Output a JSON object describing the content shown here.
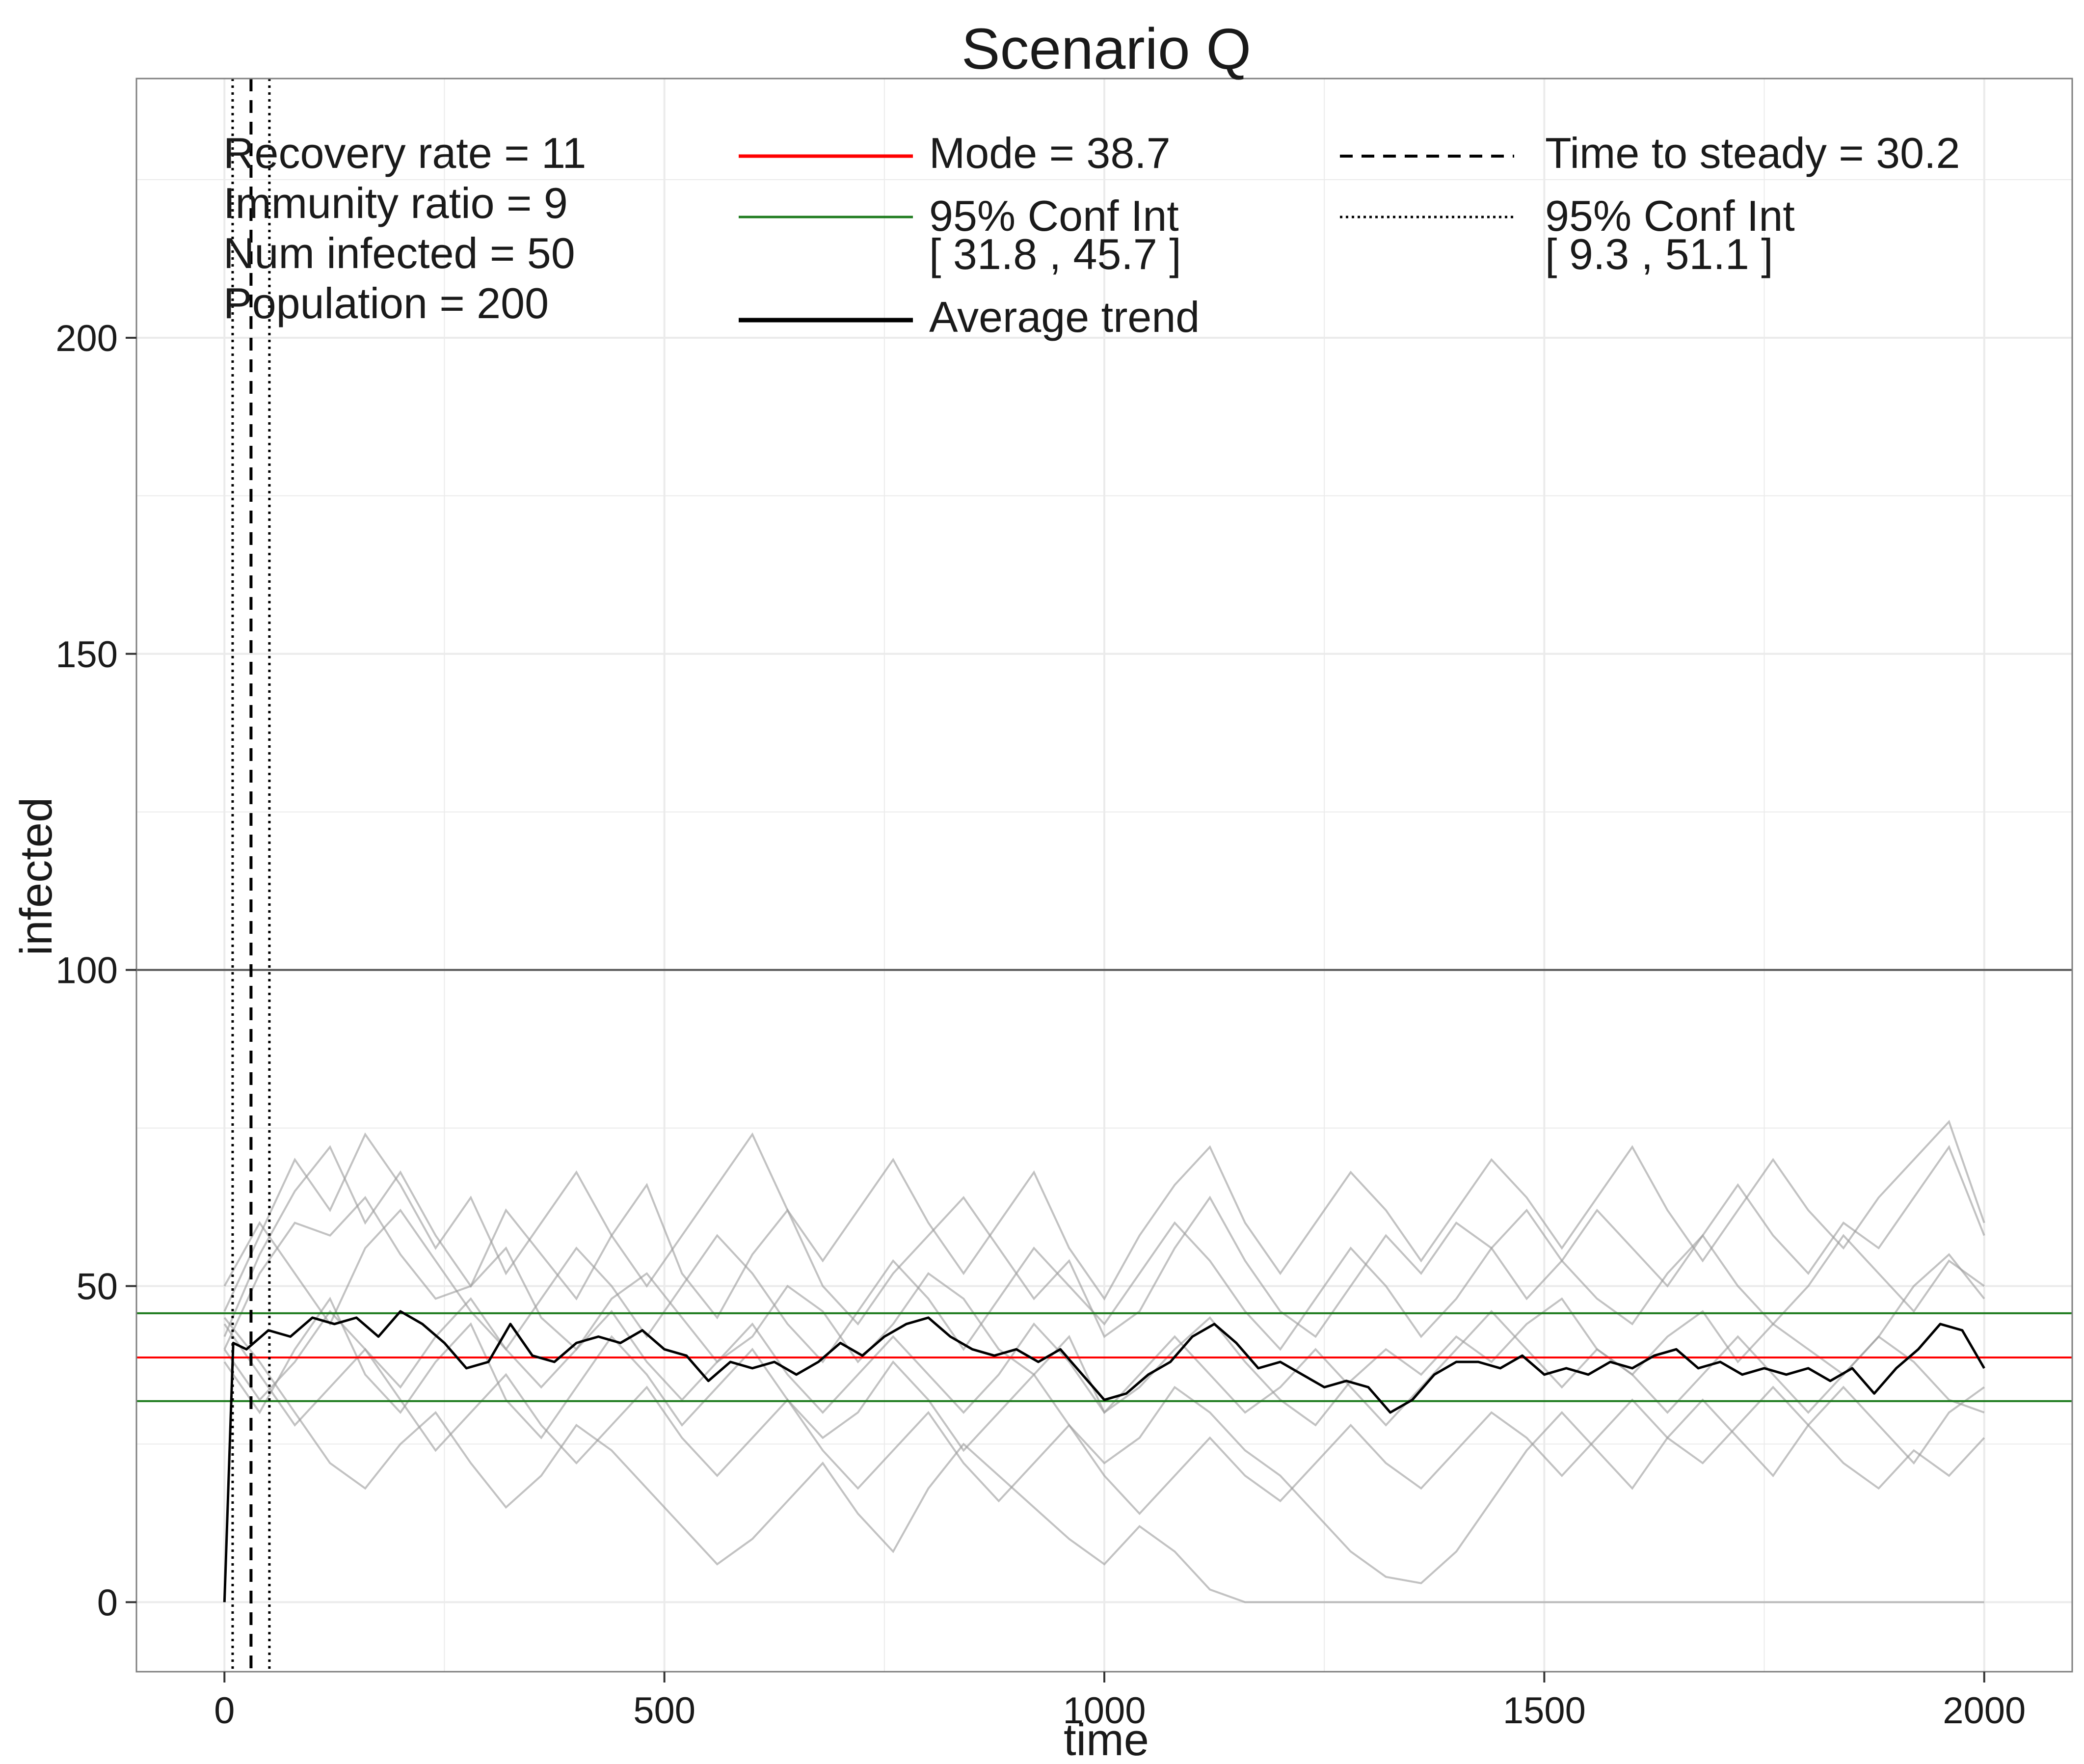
{
  "chart_data": {
    "type": "line",
    "title": "Scenario Q",
    "xlabel": "time",
    "ylabel": "infected",
    "xlim": [
      -100,
      2100
    ],
    "ylim": [
      -11,
      241
    ],
    "xticks": [
      0,
      500,
      1000,
      1500,
      2000
    ],
    "xtick_labels": [
      "0",
      "500",
      "1000",
      "1500",
      "2000"
    ],
    "yticks": [
      0,
      50,
      100,
      150,
      200
    ],
    "ytick_labels": [
      "0",
      "50",
      "100",
      "150",
      "200"
    ],
    "grid": true,
    "population_line": 100,
    "mode": 38.7,
    "conf_int": [
      31.8,
      45.7
    ],
    "time_to_steady": 30.2,
    "steady_conf_int": [
      9.3,
      51.1
    ],
    "params": [
      "Recovery rate = 11",
      "Immunity ratio = 9",
      "Num infected = 50",
      "Population = 200"
    ],
    "legend": {
      "mode_label": "Mode = 38.7",
      "ci_label_1": "95% Conf Int",
      "ci_label_2": "[ 31.8 , 45.7 ]",
      "trend_label": "Average trend",
      "steady_label": "Time to steady = 30.2",
      "steady_ci_label_1": "95% Conf Int",
      "steady_ci_label_2": "[ 9.3 , 51.1 ]"
    },
    "colors": {
      "mode": "#ff0000",
      "conf_int": "#1e7b1e",
      "trend": "#000000",
      "runs": "#9a9a9a",
      "population": "#555555",
      "grid": "#ebebeb",
      "panel_border": "#7f7f7f"
    },
    "average_trend": {
      "x": [
        0,
        10,
        25,
        50,
        75,
        100,
        125,
        150,
        175,
        200,
        225,
        250,
        275,
        300,
        325,
        350,
        375,
        400,
        425,
        450,
        475,
        500,
        525,
        550,
        575,
        600,
        625,
        650,
        675,
        700,
        725,
        750,
        775,
        800,
        825,
        850,
        875,
        900,
        925,
        950,
        975,
        1000,
        1025,
        1050,
        1075,
        1100,
        1125,
        1150,
        1175,
        1200,
        1225,
        1250,
        1275,
        1300,
        1325,
        1350,
        1375,
        1400,
        1425,
        1450,
        1475,
        1500,
        1525,
        1550,
        1575,
        1600,
        1625,
        1650,
        1675,
        1700,
        1725,
        1750,
        1775,
        1800,
        1825,
        1850,
        1875,
        1900,
        1925,
        1950,
        1975,
        2000
      ],
      "y": [
        0,
        41,
        40,
        43,
        42,
        45,
        44,
        45,
        42,
        46,
        44,
        41,
        37,
        38,
        44,
        39,
        38,
        41,
        42,
        41,
        43,
        40,
        39,
        35,
        38,
        37,
        38,
        36,
        38,
        41,
        39,
        42,
        44,
        45,
        42,
        40,
        39,
        40,
        38,
        40,
        36,
        32,
        33,
        36,
        38,
        42,
        44,
        41,
        37,
        38,
        36,
        34,
        35,
        34,
        30,
        32,
        36,
        38,
        38,
        37,
        39,
        36,
        37,
        36,
        38,
        37,
        39,
        40,
        37,
        38,
        36,
        37,
        36,
        37,
        35,
        37,
        33,
        37,
        40,
        44,
        43,
        37
      ]
    },
    "runs": [
      {
        "x": [
          0,
          40,
          80,
          120,
          160,
          200,
          240,
          280,
          320,
          360,
          400,
          440,
          480,
          520,
          560,
          600,
          640,
          680,
          720,
          760,
          800,
          840,
          880,
          920,
          960,
          1000,
          1040,
          1080,
          1120,
          1160,
          1200,
          1240,
          1280,
          1320,
          1360,
          1400,
          1440,
          1480,
          1520,
          1560,
          1600,
          1640,
          1680,
          1720,
          1760,
          1800,
          1840,
          1880,
          1920,
          1960,
          2000
        ],
        "y": [
          40,
          52,
          60,
          58,
          64,
          55,
          48,
          50,
          56,
          45,
          40,
          48,
          52,
          45,
          38,
          42,
          50,
          46,
          38,
          44,
          52,
          48,
          40,
          36,
          42,
          30,
          34,
          40,
          45,
          38,
          32,
          28,
          35,
          40,
          36,
          42,
          38,
          44,
          48,
          40,
          36,
          42,
          46,
          38,
          44,
          40,
          36,
          42,
          50,
          55,
          48
        ]
      },
      {
        "x": [
          0,
          40,
          80,
          120,
          160,
          200,
          240,
          280,
          320,
          360,
          400,
          440,
          480,
          520,
          560,
          600,
          640,
          680,
          720,
          760,
          800,
          840,
          880,
          920,
          960,
          1000,
          1040,
          1080,
          1120,
          1160,
          1200,
          1240,
          1280,
          1320,
          1360,
          1400,
          1440,
          1480,
          1520,
          1560,
          1600,
          1640,
          1680,
          1720,
          1760,
          1800,
          1840,
          1880,
          1920,
          1960,
          2000
        ],
        "y": [
          45,
          38,
          30,
          22,
          18,
          25,
          30,
          22,
          15,
          20,
          28,
          24,
          18,
          12,
          6,
          10,
          16,
          22,
          14,
          8,
          18,
          25,
          20,
          15,
          10,
          6,
          12,
          8,
          2,
          0,
          0,
          0,
          0,
          0,
          0,
          0,
          0,
          0,
          0,
          0,
          0,
          0,
          0,
          0,
          0,
          0,
          0,
          0,
          0,
          0,
          0
        ]
      },
      {
        "x": [
          0,
          40,
          80,
          120,
          160,
          200,
          240,
          280,
          320,
          360,
          400,
          440,
          480,
          520,
          560,
          600,
          640,
          680,
          720,
          760,
          800,
          840,
          880,
          920,
          960,
          1000,
          1040,
          1080,
          1120,
          1160,
          1200,
          1240,
          1280,
          1320,
          1360,
          1400,
          1440,
          1480,
          1520,
          1560,
          1600,
          1640,
          1680,
          1720,
          1760,
          1800,
          1840,
          1880,
          1920,
          1960,
          2000
        ],
        "y": [
          42,
          55,
          65,
          72,
          60,
          68,
          58,
          50,
          62,
          55,
          48,
          58,
          66,
          52,
          45,
          55,
          62,
          50,
          44,
          52,
          58,
          64,
          56,
          48,
          54,
          42,
          46,
          56,
          64,
          54,
          46,
          42,
          50,
          58,
          52,
          60,
          56,
          48,
          54,
          62,
          56,
          50,
          58,
          66,
          58,
          52,
          60,
          56,
          64,
          72,
          58
        ]
      },
      {
        "x": [
          0,
          40,
          80,
          120,
          160,
          200,
          240,
          280,
          320,
          360,
          400,
          440,
          480,
          520,
          560,
          600,
          640,
          680,
          720,
          760,
          800,
          840,
          880,
          920,
          960,
          1000,
          1040,
          1080,
          1120,
          1160,
          1200,
          1240,
          1280,
          1320,
          1360,
          1400,
          1440,
          1480,
          1520,
          1560,
          1600,
          1640,
          1680,
          1720,
          1760,
          1800,
          1840,
          1880,
          1920,
          1960,
          2000
        ],
        "y": [
          38,
          30,
          40,
          48,
          36,
          30,
          38,
          44,
          32,
          26,
          34,
          42,
          36,
          28,
          34,
          40,
          32,
          26,
          30,
          38,
          32,
          24,
          30,
          36,
          28,
          22,
          26,
          34,
          30,
          24,
          20,
          14,
          8,
          4,
          3,
          8,
          16,
          24,
          30,
          24,
          18,
          26,
          32,
          26,
          20,
          28,
          34,
          28,
          22,
          30,
          34
        ]
      },
      {
        "x": [
          0,
          40,
          80,
          120,
          160,
          200,
          240,
          280,
          320,
          360,
          400,
          440,
          480,
          520,
          560,
          600,
          640,
          680,
          720,
          760,
          800,
          840,
          880,
          920,
          960,
          1000,
          1040,
          1080,
          1120,
          1160,
          1200,
          1240,
          1280,
          1320,
          1360,
          1400,
          1440,
          1480,
          1520,
          1560,
          1600,
          1640,
          1680,
          1720,
          1760,
          1800,
          1840,
          1880,
          1920,
          1960,
          2000
        ],
        "y": [
          50,
          60,
          52,
          44,
          56,
          62,
          54,
          46,
          40,
          48,
          56,
          50,
          42,
          50,
          58,
          52,
          44,
          38,
          46,
          54,
          48,
          40,
          48,
          56,
          50,
          44,
          52,
          60,
          54,
          46,
          40,
          48,
          56,
          50,
          42,
          48,
          56,
          62,
          54,
          48,
          44,
          52,
          58,
          50,
          44,
          50,
          58,
          52,
          46,
          54,
          50
        ]
      },
      {
        "x": [
          0,
          40,
          80,
          120,
          160,
          200,
          240,
          280,
          320,
          360,
          400,
          440,
          480,
          520,
          560,
          600,
          640,
          680,
          720,
          760,
          800,
          840,
          880,
          920,
          960,
          1000,
          1040,
          1080,
          1120,
          1160,
          1200,
          1240,
          1280,
          1320,
          1360,
          1400,
          1440,
          1480,
          1520,
          1560,
          1600,
          1640,
          1680,
          1720,
          1760,
          1800,
          1840,
          1880,
          1920,
          1960,
          2000
        ],
        "y": [
          44,
          36,
          28,
          34,
          40,
          32,
          24,
          30,
          36,
          28,
          22,
          28,
          34,
          26,
          20,
          26,
          32,
          24,
          18,
          24,
          30,
          22,
          16,
          22,
          28,
          20,
          14,
          20,
          26,
          20,
          16,
          22,
          28,
          22,
          18,
          24,
          30,
          26,
          20,
          26,
          32,
          26,
          22,
          28,
          34,
          28,
          22,
          18,
          24,
          20,
          26
        ]
      },
      {
        "x": [
          0,
          40,
          80,
          120,
          160,
          200,
          240,
          280,
          320,
          360,
          400,
          440,
          480,
          520,
          560,
          600,
          640,
          680,
          720,
          760,
          800,
          840,
          880,
          920,
          960,
          1000,
          1040,
          1080,
          1120,
          1160,
          1200,
          1240,
          1280,
          1320,
          1360,
          1400,
          1440,
          1480,
          1520,
          1560,
          1600,
          1640,
          1680,
          1720,
          1760,
          1800,
          1840,
          1880,
          1920,
          1960,
          2000
        ],
        "y": [
          46,
          58,
          70,
          62,
          74,
          66,
          56,
          64,
          52,
          60,
          68,
          58,
          50,
          58,
          66,
          74,
          62,
          54,
          62,
          70,
          60,
          52,
          60,
          68,
          56,
          48,
          58,
          66,
          72,
          60,
          52,
          60,
          68,
          62,
          54,
          62,
          70,
          64,
          56,
          64,
          72,
          62,
          54,
          62,
          70,
          62,
          56,
          64,
          70,
          76,
          60
        ]
      },
      {
        "x": [
          0,
          40,
          80,
          120,
          160,
          200,
          240,
          280,
          320,
          360,
          400,
          440,
          480,
          520,
          560,
          600,
          640,
          680,
          720,
          760,
          800,
          840,
          880,
          920,
          960,
          1000,
          1040,
          1080,
          1120,
          1160,
          1200,
          1240,
          1280,
          1320,
          1360,
          1400,
          1440,
          1480,
          1520,
          1560,
          1600,
          1640,
          1680,
          1720,
          1760,
          1800,
          1840,
          1880,
          1920,
          1960,
          2000
        ],
        "y": [
          40,
          32,
          38,
          46,
          40,
          34,
          42,
          48,
          40,
          34,
          40,
          46,
          38,
          32,
          38,
          44,
          36,
          30,
          36,
          42,
          36,
          30,
          36,
          44,
          38,
          30,
          36,
          42,
          36,
          30,
          34,
          40,
          34,
          28,
          34,
          40,
          46,
          40,
          34,
          40,
          36,
          30,
          36,
          42,
          36,
          30,
          36,
          42,
          38,
          32,
          30
        ]
      }
    ]
  }
}
